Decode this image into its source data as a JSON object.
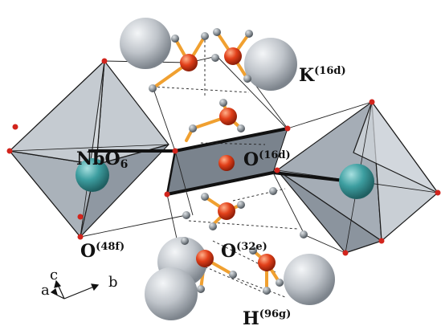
{
  "labels": {
    "k": {
      "main": "K",
      "sup": "(16d)"
    },
    "nbo6": {
      "main": "NbO",
      "sub": "6"
    },
    "o16d": {
      "main": "O",
      "sup": "(16d)"
    },
    "o48f": {
      "main": "O",
      "sup": "(48f)"
    },
    "o32e": {
      "main": "O",
      "sup": "(32e)"
    },
    "h96g": {
      "main": "H",
      "sup": "(96g)"
    }
  },
  "axes": {
    "a": "a",
    "b": "b",
    "c": "c"
  },
  "colors": {
    "octahedron_fill": "#9ea6b0",
    "octahedron_edge": "#1a1a1a",
    "potassium": "#b9bec4",
    "niobium": "#3d9ea0",
    "oxygen_large": "#e2401a",
    "oxygen_small": "#d2241c",
    "hydrogen": "#8c9399",
    "oh_bond": "#f0a030",
    "background": "#ffffff"
  }
}
